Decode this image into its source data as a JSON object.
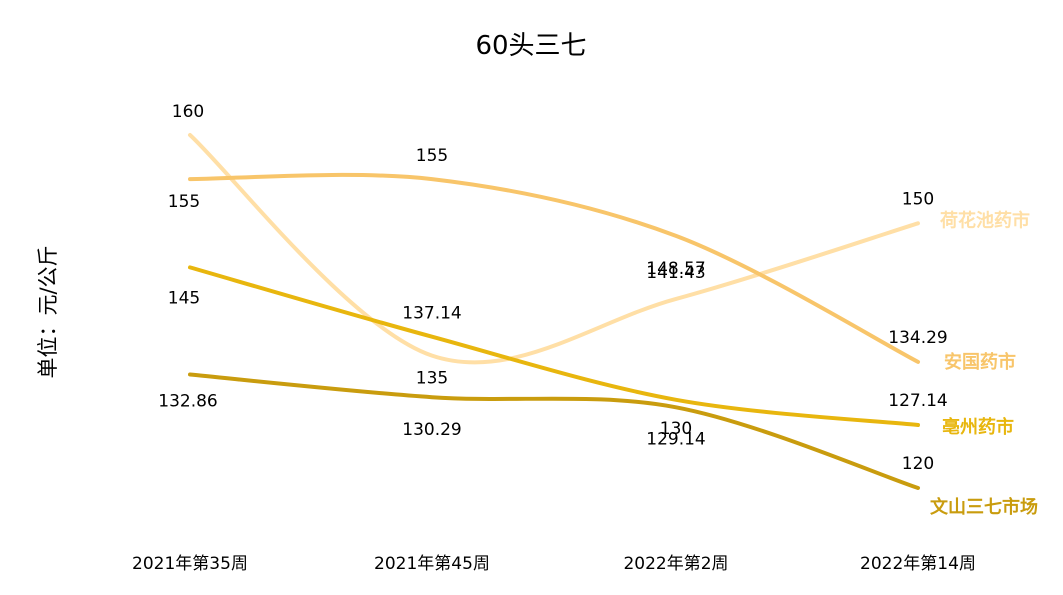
{
  "chart_data": {
    "type": "line",
    "title": "60头三七",
    "ylabel": "单位：元/公斤",
    "xlabel": "",
    "categories": [
      "2021年第35周",
      "2021年第45周",
      "2022年第2周",
      "2022年第14周"
    ],
    "ylim": [
      110,
      165
    ],
    "grid": false,
    "legend": "end-of-line labels",
    "series": [
      {
        "name": "荷花池药市",
        "values": [
          160,
          135,
          141.43,
          150
        ],
        "labels": [
          "160",
          "135",
          "141.43",
          "150"
        ],
        "color": "#FFDFA6"
      },
      {
        "name": "安国药市",
        "values": [
          155,
          155,
          148.57,
          134.29
        ],
        "labels": [
          "155",
          "155",
          "148.57",
          "134.29"
        ],
        "color": "#F8C56A"
      },
      {
        "name": "亳州药市",
        "values": [
          145,
          137.14,
          130,
          127.14
        ],
        "labels": [
          "145",
          "137.14",
          "130",
          "127.14"
        ],
        "color": "#E8B60E"
      },
      {
        "name": "文山三七市场",
        "values": [
          132.86,
          130.29,
          129.14,
          120
        ],
        "labels": [
          "132.86",
          "130.29",
          "129.14",
          "120"
        ],
        "color": "#C99C0E"
      }
    ]
  }
}
